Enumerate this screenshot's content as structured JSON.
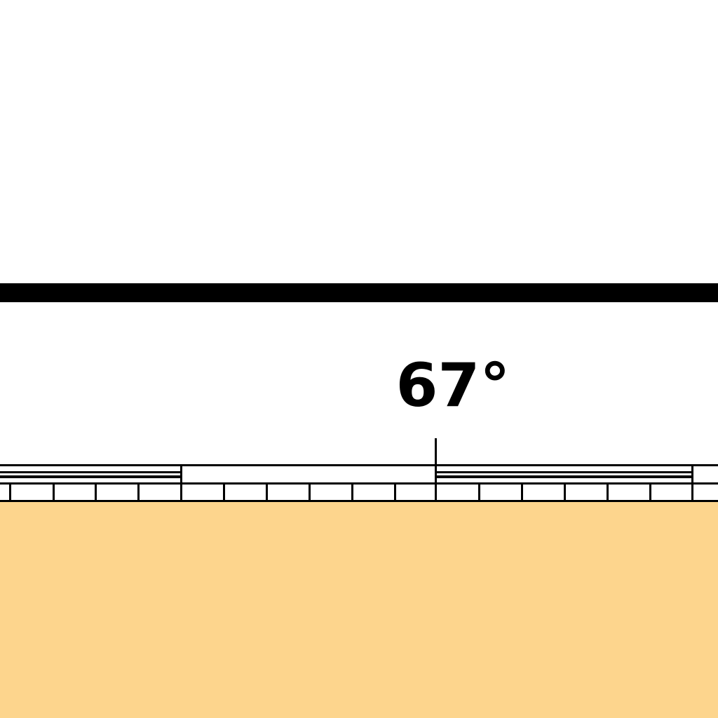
{
  "map": {
    "latitude_label": "67°",
    "colors": {
      "background": "#ffffff",
      "land": "#fdd58d",
      "line": "#000000"
    }
  }
}
